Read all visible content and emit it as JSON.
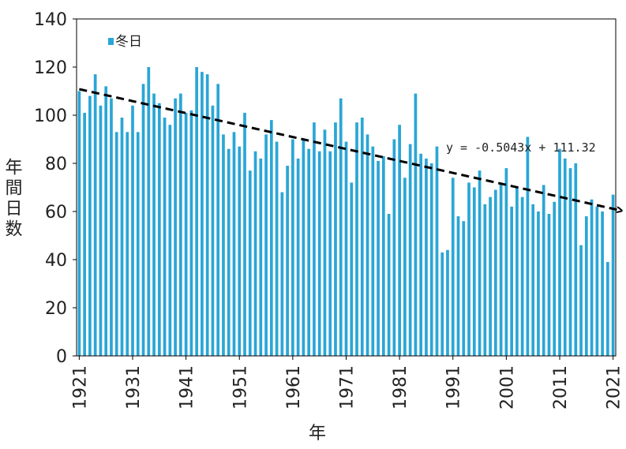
{
  "chart_data": {
    "type": "bar",
    "y_label": "年間日数",
    "x_label": "年",
    "series": [
      {
        "name": "冬日",
        "color": "#2aa6d6",
        "values": [
          110,
          101,
          108,
          117,
          104,
          112,
          107,
          93,
          99,
          93,
          104,
          93,
          113,
          120,
          109,
          105,
          99,
          96,
          107,
          109,
          101,
          102,
          120,
          118,
          117,
          104,
          113,
          92,
          86,
          93,
          87,
          101,
          77,
          85,
          82,
          92,
          98,
          89,
          68,
          79,
          90,
          82,
          90,
          86,
          97,
          85,
          94,
          85,
          97,
          107,
          89,
          72,
          97,
          99,
          92,
          87,
          81,
          83,
          59,
          90,
          96,
          74,
          88,
          109,
          84,
          82,
          80,
          87,
          43,
          44,
          74,
          58,
          56,
          72,
          70,
          77,
          63,
          66,
          69,
          72,
          78,
          62,
          70,
          66,
          91,
          63,
          60,
          71,
          59,
          64,
          86,
          82,
          78,
          80,
          46,
          58,
          65,
          62,
          60,
          39,
          67
        ]
      }
    ],
    "x": [
      1921,
      1922,
      1923,
      1924,
      1925,
      1926,
      1927,
      1928,
      1929,
      1930,
      1931,
      1932,
      1933,
      1934,
      1935,
      1936,
      1937,
      1938,
      1939,
      1940,
      1941,
      1942,
      1943,
      1944,
      1945,
      1946,
      1947,
      1948,
      1949,
      1950,
      1951,
      1952,
      1953,
      1954,
      1955,
      1956,
      1957,
      1958,
      1959,
      1960,
      1961,
      1962,
      1963,
      1964,
      1965,
      1966,
      1967,
      1968,
      1969,
      1970,
      1971,
      1972,
      1973,
      1974,
      1975,
      1976,
      1977,
      1978,
      1979,
      1980,
      1981,
      1982,
      1983,
      1984,
      1985,
      1986,
      1987,
      1988,
      1989,
      1990,
      1991,
      1992,
      1993,
      1994,
      1995,
      1996,
      1997,
      1998,
      1999,
      2000,
      2001,
      2002,
      2003,
      2004,
      2005,
      2006,
      2007,
      2008,
      2009,
      2010,
      2011,
      2012,
      2013,
      2014,
      2015,
      2016,
      2017,
      2018,
      2019,
      2020,
      2021
    ],
    "xlim": [
      1920.5,
      2021.5
    ],
    "xticks": [
      1921,
      1931,
      1941,
      1951,
      1961,
      1971,
      1981,
      1991,
      2001,
      2011,
      2021
    ],
    "ylim": [
      0,
      140
    ],
    "yticks": [
      0,
      20,
      40,
      60,
      80,
      100,
      120,
      140
    ],
    "trendline": {
      "slope": -0.5043,
      "intercept": 111.32,
      "label": "y = -0.5043x + 111.32",
      "color": "#000000"
    },
    "legend": "top-left"
  }
}
